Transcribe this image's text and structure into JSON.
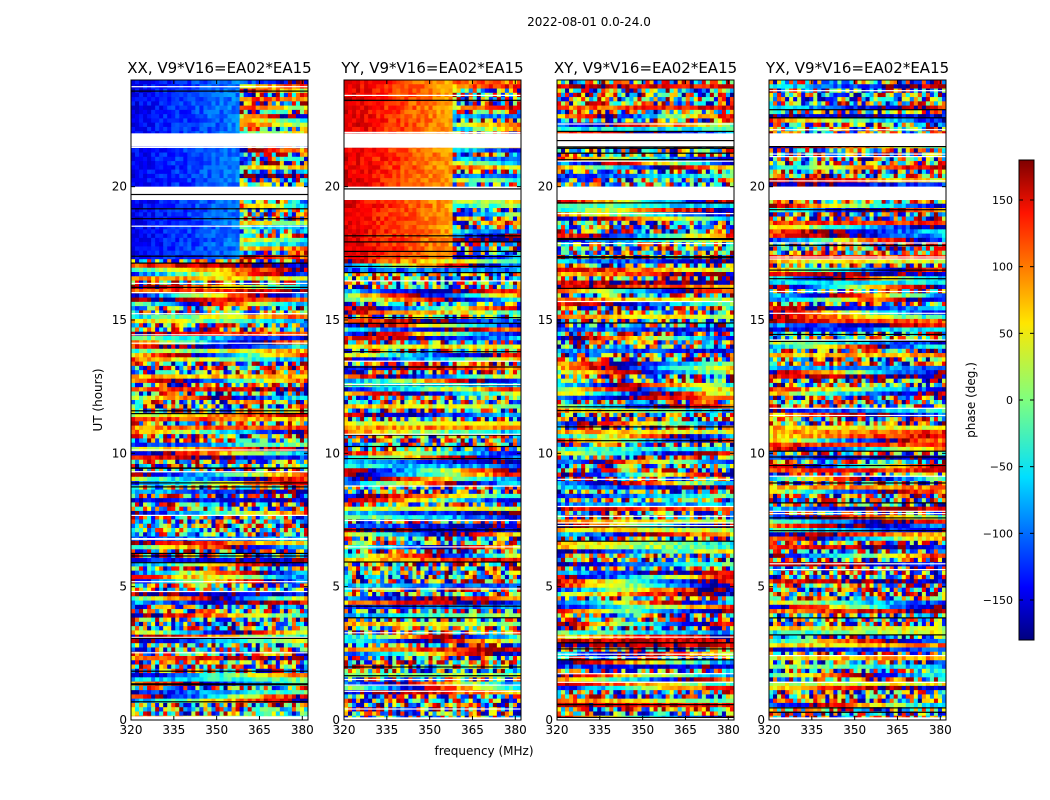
{
  "chart_data": {
    "type": "heatmap",
    "suptitle": "2022-08-01 0.0-24.0",
    "xlabel": "frequency (MHz)",
    "ylabel": "UT (hours)",
    "xlim": [
      320,
      382
    ],
    "ylim": [
      0,
      24
    ],
    "xticks": [
      320,
      335,
      350,
      365,
      380
    ],
    "yticks": [
      0,
      5,
      10,
      15,
      20
    ],
    "panels": [
      {
        "id": "xx",
        "title": "XX, V9*V16=EA02*EA15",
        "base_phase": -140,
        "phase_slope": 80
      },
      {
        "id": "yy",
        "title": "YY, V9*V16=EA02*EA15",
        "base_phase": 150,
        "phase_slope": -120
      },
      {
        "id": "xy",
        "title": "XY, V9*V16=EA02*EA15",
        "base_phase": null,
        "phase_slope": null
      },
      {
        "id": "yx",
        "title": "YX, V9*V16=EA02*EA15",
        "base_phase": null,
        "phase_slope": null
      }
    ],
    "flagged_utc_hours": [
      [
        19.5,
        20.0
      ],
      [
        21.5,
        22.0
      ],
      [
        0.0,
        0.1
      ]
    ],
    "colorbar": {
      "label": "phase (deg.)",
      "range": [
        -180,
        180
      ],
      "ticks": [
        150,
        100,
        50,
        0,
        -50,
        -100,
        -150
      ],
      "tick_labels": [
        "150",
        "100",
        "50",
        "0",
        "−50",
        "−100",
        "−150"
      ],
      "colormap": "jet"
    }
  }
}
